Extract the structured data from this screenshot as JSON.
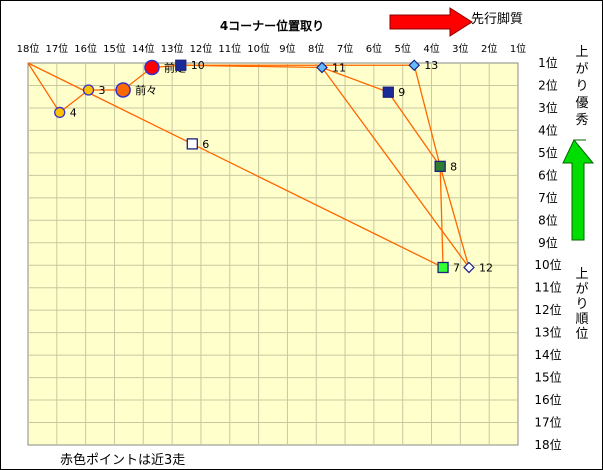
{
  "chart_data": {
    "type": "scatter",
    "title": "4コーナー位置取り",
    "x_label": "先行脚質",
    "y_label_top": "上がり優秀",
    "y_label_side": "上がり順位",
    "footnote": "赤色ポイントは近3走",
    "x_ticks": [
      "18位",
      "17位",
      "16位",
      "15位",
      "14位",
      "13位",
      "12位",
      "11位",
      "10位",
      "9位",
      "8位",
      "7位",
      "6位",
      "5位",
      "4位",
      "3位",
      "2位",
      "1位"
    ],
    "y_ticks": [
      "1位",
      "2位",
      "3位",
      "4位",
      "5位",
      "6位",
      "7位",
      "8位",
      "9位",
      "10位",
      "11位",
      "12位",
      "13位",
      "14位",
      "15位",
      "16位",
      "17位",
      "18位"
    ],
    "xlim": [
      18,
      1
    ],
    "ylim": [
      1,
      18
    ],
    "grid": true,
    "points": [
      {
        "label": "前走",
        "x": 13.7,
        "y": 1.2,
        "shape": "circle-large",
        "fill": "#ff0000",
        "stroke": "#3333cc"
      },
      {
        "label": "前々",
        "x": 14.7,
        "y": 2.2,
        "shape": "circle-large",
        "fill": "#ff6a00",
        "stroke": "#3333cc"
      },
      {
        "label": "3",
        "x": 15.9,
        "y": 2.2,
        "shape": "circle",
        "fill": "#ffc000",
        "stroke": "#3333cc"
      },
      {
        "label": "4",
        "x": 16.9,
        "y": 3.2,
        "shape": "circle",
        "fill": "#ffc000",
        "stroke": "#3333cc"
      },
      {
        "label": "6",
        "x": 12.3,
        "y": 4.6,
        "shape": "square-open",
        "fill": "#ffffff",
        "stroke": "#1a237e"
      },
      {
        "label": "7",
        "x": 3.6,
        "y": 10.1,
        "shape": "square",
        "fill": "#33ff33",
        "stroke": "#1a237e"
      },
      {
        "label": "8",
        "x": 3.7,
        "y": 5.6,
        "shape": "square",
        "fill": "#2e7d32",
        "stroke": "#1a237e"
      },
      {
        "label": "9",
        "x": 5.5,
        "y": 2.3,
        "shape": "square",
        "fill": "#1a2a99",
        "stroke": "#1a237e"
      },
      {
        "label": "10",
        "x": 12.7,
        "y": 1.1,
        "shape": "square",
        "fill": "#1a2a99",
        "stroke": "#1a237e"
      },
      {
        "label": "11",
        "x": 7.8,
        "y": 1.2,
        "shape": "diamond",
        "fill": "#66bbff",
        "stroke": "#1a237e"
      },
      {
        "label": "12",
        "x": 2.7,
        "y": 10.1,
        "shape": "diamond",
        "fill": "#ffffff",
        "stroke": "#1a237e"
      },
      {
        "label": "13",
        "x": 4.6,
        "y": 1.1,
        "shape": "diamond",
        "fill": "#66bbff",
        "stroke": "#1a237e"
      }
    ],
    "lines": [
      [
        [
          18,
          1
        ],
        [
          16.9,
          3.2
        ],
        [
          15.9,
          2.2
        ],
        [
          14.7,
          2.2
        ],
        [
          13.7,
          1.2
        ],
        [
          12.7,
          1.1
        ],
        [
          7.8,
          1.2
        ],
        [
          5.5,
          2.3
        ],
        [
          3.7,
          5.6
        ],
        [
          3.6,
          10.1
        ],
        [
          18,
          1
        ]
      ],
      [
        [
          12.7,
          1.1
        ],
        [
          4.6,
          1.1
        ],
        [
          3.7,
          5.6
        ],
        [
          2.7,
          10.1
        ],
        [
          7.8,
          1.2
        ]
      ]
    ],
    "line_color": "#ff6600",
    "plot_bg": "#ffffcc",
    "grid_color": "#c8c8a0",
    "arrow_right_color": "#ff0000",
    "arrow_up_color": "#00dd00"
  }
}
